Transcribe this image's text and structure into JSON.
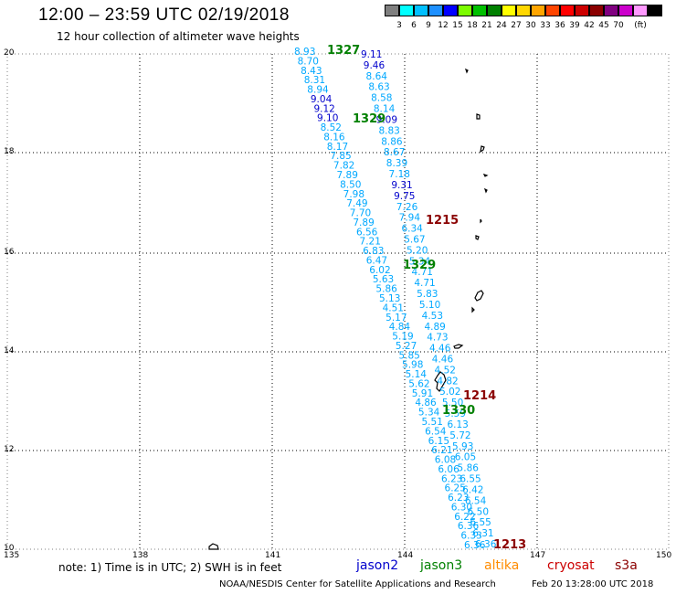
{
  "header": {
    "title": "12:00 – 23:59 UTC 02/19/2018",
    "subtitle": "12 hour collection of altimeter wave heights"
  },
  "colorbar": {
    "colors": [
      "#7f7f7f",
      "#00ffff",
      "#00bfff",
      "#1e90ff",
      "#0000ff",
      "#7cfc00",
      "#00c000",
      "#008000",
      "#ffff00",
      "#ffd700",
      "#ffa500",
      "#ff4500",
      "#ff0000",
      "#cc0000",
      "#8b0000",
      "#800080",
      "#cc00cc",
      "#ff99ff",
      "#000000"
    ],
    "labels": [
      "3",
      "6",
      "9",
      "12",
      "15",
      "18",
      "21",
      "24",
      "27",
      "30",
      "33",
      "36",
      "39",
      "42",
      "45",
      "70",
      "(ft)"
    ]
  },
  "axes": {
    "lat_labels": [
      "20",
      "18",
      "16",
      "14",
      "12",
      "10"
    ],
    "lon_labels": [
      "135",
      "138",
      "141",
      "144",
      "147",
      "150"
    ]
  },
  "track": {
    "colors": {
      "jason2": "#0000cc",
      "jason3": "#008000",
      "altika": "#ff8c00",
      "cryosat": "#cc0000",
      "s3a": "#8b0000",
      "cyan": "#00a8ff"
    },
    "ticket_labels": [
      {
        "text": "1327",
        "color": "#008000"
      },
      {
        "text": "1329",
        "color": "#008000"
      },
      {
        "text": "1215",
        "color": "#8b0000"
      },
      {
        "text": "1329",
        "color": "#008000"
      },
      {
        "text": "1214",
        "color": "#8b0000"
      },
      {
        "text": "1330",
        "color": "#008000"
      },
      {
        "text": "1213",
        "color": "#8b0000"
      }
    ],
    "left_track_values": [
      "8.93",
      "8.70",
      "8.43",
      "8.31",
      "8.94",
      "9.04",
      "9.12",
      "9.10",
      "8.52",
      "8.16",
      "8.17",
      "7.85",
      "7.82",
      "7.89",
      "8.50",
      "7.98",
      "7.49",
      "7.70",
      "7.89",
      "6.56",
      "7.21",
      "6.83",
      "6.47",
      "6.02",
      "5.63",
      "5.86",
      "5.13",
      "4.51",
      "5.17",
      "4.84",
      "5.19",
      "5.27",
      "5.85",
      "5.98",
      "5.14",
      "5.62",
      "5.91",
      "4.86",
      "5.34",
      "5.51",
      "6.54",
      "6.15",
      "6.21",
      "6.08",
      "6.06",
      "6.23",
      "6.25",
      "6.23",
      "6.30",
      "6.22",
      "6.36",
      "6.33",
      "6.36"
    ],
    "left_track_dark": [
      5,
      6,
      7
    ],
    "right_track_values": [
      "9.11",
      "9.46",
      "8.64",
      "8.63",
      "8.58",
      "8.14",
      "9.09",
      "8.83",
      "8.86",
      "8.67",
      "8.39",
      "7.18",
      "9.31",
      "9.75",
      "7.26",
      "7.94",
      "6.34",
      "5.67",
      "5.20",
      "5.34",
      "4.71",
      "4.71",
      "5.83",
      "5.10",
      "4.53",
      "4.89",
      "4.73",
      "4.46",
      "4.46",
      "4.52",
      "4.82",
      "5.02",
      "5.50",
      "5.59",
      "6.13",
      "5.72",
      "5.93",
      "6.05",
      "5.86",
      "6.55",
      "6.42",
      "6.54",
      "6.50",
      "6.55",
      "6.31",
      "6.36"
    ],
    "right_track_dark": [
      0,
      1,
      6,
      12,
      13
    ]
  },
  "footer": {
    "note": "note:  1) Time is in UTC;  2) SWH is in feet",
    "missions": [
      {
        "label": "jason2",
        "color": "#0000cc"
      },
      {
        "label": "jason3",
        "color": "#008000"
      },
      {
        "label": "altika",
        "color": "#ff8c00"
      },
      {
        "label": "cryosat",
        "color": "#cc0000"
      },
      {
        "label": "s3a",
        "color": "#8b0000"
      }
    ],
    "credit": "NOAA/NESDIS Center for Satellite Applications and Research",
    "stamp": "Feb 20 13:28:00 UTC 2018"
  }
}
